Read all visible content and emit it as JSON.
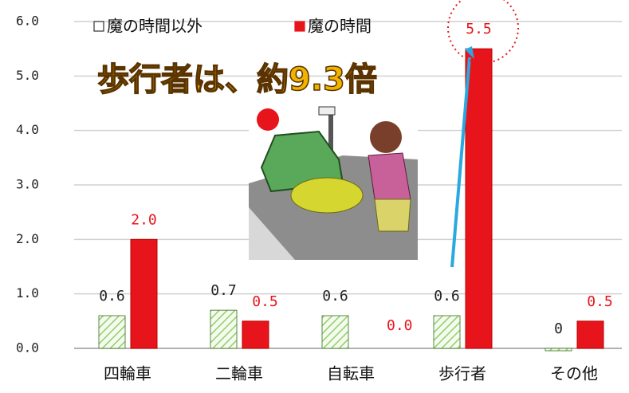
{
  "chart_data": {
    "type": "bar",
    "annotation": "歩行者は、約9.3倍",
    "categories": [
      "四輪車",
      "二輪車",
      "自転車",
      "歩行者",
      "その他"
    ],
    "series": [
      {
        "name": "魔の時間以外",
        "color": "#8fcf6a",
        "values": [
          0.6,
          0.7,
          0.6,
          0.6,
          0.0
        ]
      },
      {
        "name": "魔の時間",
        "color": "#e8141c",
        "values": [
          2.0,
          0.5,
          0.0,
          5.5,
          0.5
        ],
        "value_labels": [
          "2.0",
          "0.5",
          "0.0",
          "5.5",
          "0.5"
        ]
      }
    ],
    "ylim": [
      0,
      6
    ],
    "yticks": [
      {
        "value": 0,
        "label": "0.0"
      },
      {
        "value": 1,
        "label": "1.0"
      },
      {
        "value": 2,
        "label": "2.0"
      },
      {
        "value": 3,
        "label": "3.0"
      },
      {
        "value": 4,
        "label": "4.0"
      },
      {
        "value": 5,
        "label": "5.0"
      },
      {
        "value": 6,
        "label": "6.0"
      }
    ],
    "grid": true
  }
}
